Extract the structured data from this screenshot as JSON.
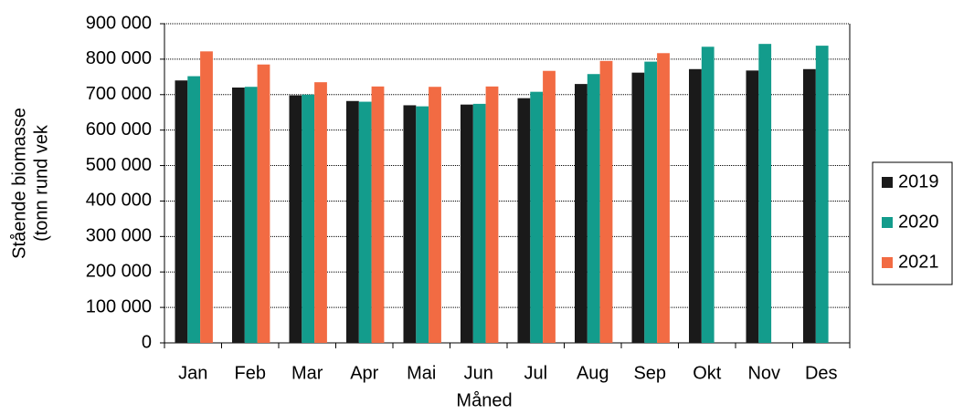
{
  "chart_data": {
    "type": "bar",
    "ylabel": [
      "Stående biomasse",
      "(tonn rund vek"
    ],
    "xlabel": "Måned",
    "categories": [
      "Jan",
      "Feb",
      "Mar",
      "Apr",
      "Mai",
      "Jun",
      "Jul",
      "Aug",
      "Sep",
      "Okt",
      "Nov",
      "Des"
    ],
    "series": [
      {
        "name": "2019",
        "color": "#1a1a1a",
        "values": [
          740000,
          720000,
          698000,
          682000,
          670000,
          672000,
          690000,
          730000,
          762000,
          772000,
          768000,
          772000
        ]
      },
      {
        "name": "2020",
        "color": "#139c8c",
        "values": [
          752000,
          722000,
          700000,
          680000,
          667000,
          674000,
          708000,
          758000,
          793000,
          835000,
          843000,
          838000
        ]
      },
      {
        "name": "2021",
        "color": "#f26b43",
        "values": [
          822000,
          785000,
          735000,
          723000,
          722000,
          723000,
          767000,
          795000,
          817000,
          null,
          null,
          null
        ]
      }
    ],
    "ylim": [
      0,
      900000
    ],
    "yticks": [
      0,
      {
        "value": 100000,
        "label": "100 000"
      },
      {
        "value": 200000,
        "label": "200 000"
      },
      {
        "value": 300000,
        "label": "300 000"
      },
      {
        "value": 400000,
        "label": "400 000"
      },
      {
        "value": 500000,
        "label": "500 000"
      },
      {
        "value": 600000,
        "label": "600 000"
      },
      {
        "value": 700000,
        "label": "700 000"
      },
      {
        "value": 800000,
        "label": "800 000"
      },
      {
        "value": 900000,
        "label": "900 000"
      }
    ],
    "grid": true,
    "legend": "right"
  }
}
